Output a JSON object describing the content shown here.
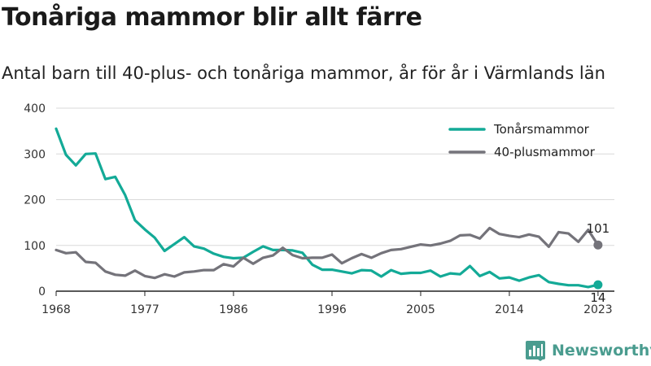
{
  "header": {
    "title": "Tonåriga mammor blir allt färre",
    "subtitle": "Antal barn till 40-plus- och tonåriga mammor, år för år i Värmlands län"
  },
  "brand": {
    "name": "Newsworthy",
    "icon": "newsworthy-logo-icon"
  },
  "colors": {
    "teen": "#13aa97",
    "forty": "#74737a",
    "grid": "#d9d9d9",
    "axis": "#222222"
  },
  "chart_data": {
    "type": "line",
    "title": "Tonåriga mammor blir allt färre",
    "subtitle": "Antal barn till 40-plus- och tonåriga mammor, år för år i Värmlands län",
    "xlabel": "",
    "ylabel": "",
    "xlim": [
      1968,
      2024
    ],
    "ylim": [
      0,
      400
    ],
    "xticks": [
      1968,
      1977,
      1986,
      1996,
      2005,
      2014,
      2023
    ],
    "yticks": [
      0,
      100,
      200,
      300,
      400
    ],
    "grid": true,
    "legend": "top-right",
    "x": [
      1968,
      1969,
      1970,
      1971,
      1972,
      1973,
      1974,
      1975,
      1976,
      1977,
      1978,
      1979,
      1980,
      1981,
      1982,
      1983,
      1984,
      1985,
      1986,
      1987,
      1988,
      1989,
      1990,
      1991,
      1992,
      1993,
      1994,
      1995,
      1996,
      1997,
      1998,
      1999,
      2000,
      2001,
      2002,
      2003,
      2004,
      2005,
      2006,
      2007,
      2008,
      2009,
      2010,
      2011,
      2012,
      2013,
      2014,
      2015,
      2016,
      2017,
      2018,
      2019,
      2020,
      2021,
      2022,
      2023,
      2024
    ],
    "series": [
      {
        "name": "Tonårsmammor",
        "color": "#13aa97",
        "values": [
          355,
          298,
          275,
          300,
          301,
          245,
          250,
          210,
          155,
          135,
          117,
          88,
          103,
          118,
          98,
          93,
          82,
          75,
          72,
          73,
          86,
          98,
          90,
          90,
          89,
          84,
          58,
          47,
          47,
          43,
          39,
          46,
          45,
          32,
          46,
          38,
          40,
          40,
          45,
          32,
          39,
          37,
          55,
          33,
          42,
          28,
          30,
          23,
          30,
          35,
          20,
          16,
          13,
          13,
          9,
          14,
          null
        ],
        "end_label": "14"
      },
      {
        "name": "40-plusmammor",
        "color": "#74737a",
        "values": [
          90,
          83,
          85,
          64,
          62,
          43,
          36,
          34,
          45,
          33,
          29,
          37,
          32,
          41,
          43,
          46,
          46,
          59,
          54,
          73,
          60,
          73,
          78,
          95,
          79,
          72,
          73,
          73,
          80,
          61,
          72,
          81,
          73,
          83,
          90,
          92,
          97,
          102,
          100,
          104,
          110,
          122,
          123,
          115,
          138,
          125,
          121,
          118,
          124,
          119,
          97,
          129,
          126,
          108,
          134,
          101,
          null
        ],
        "end_label": "101"
      }
    ]
  }
}
